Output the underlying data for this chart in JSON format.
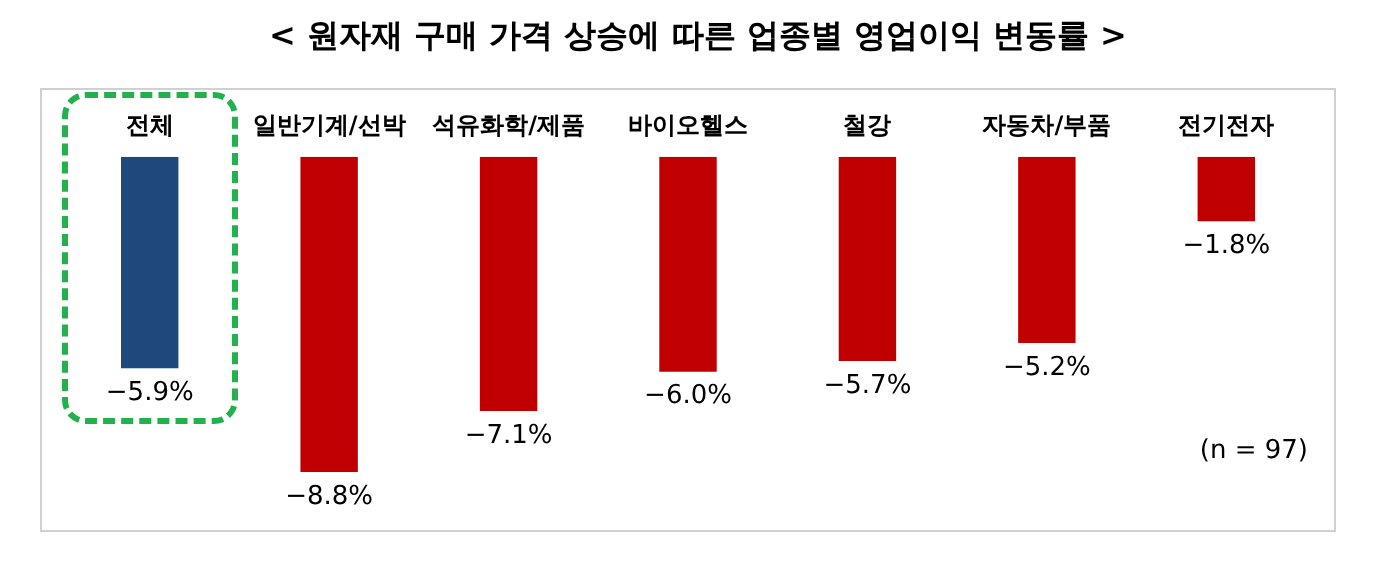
{
  "chart_data": {
    "type": "bar",
    "title": "< 원자재 구매 가격 상승에 따른 업종별 영업이익 변동률 >",
    "categories": [
      "전체",
      "일반기계/선박",
      "석유화학/제품",
      "바이오헬스",
      "철강",
      "자동차/부품",
      "전기전자"
    ],
    "values": [
      -5.9,
      -8.8,
      -7.1,
      -6.0,
      -5.7,
      -5.2,
      -1.8
    ],
    "colors": [
      "#1f497d",
      "#c00000",
      "#c00000",
      "#c00000",
      "#c00000",
      "#c00000",
      "#c00000"
    ],
    "value_labels": [
      "−5.9%",
      "−8.8%",
      "−7.1%",
      "−6.0%",
      "−5.7%",
      "−5.2%",
      "−1.8%"
    ],
    "annotations": [
      "(n = 97)"
    ],
    "legend": false,
    "grid": false
  }
}
